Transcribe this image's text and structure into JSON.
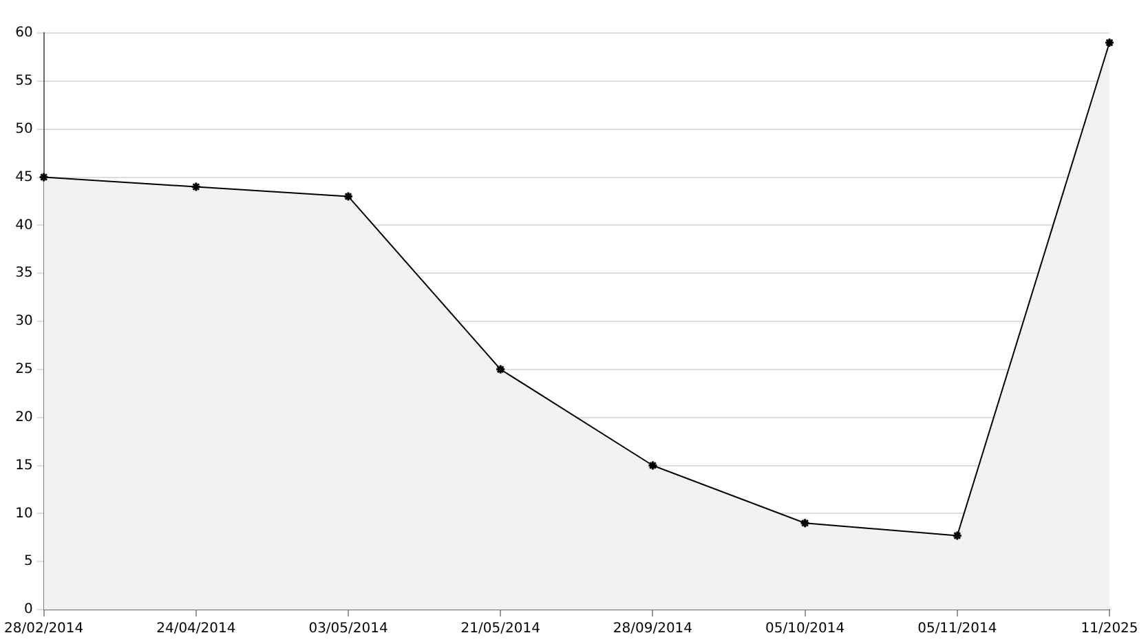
{
  "chart_data": {
    "type": "area",
    "categories": [
      "28/02/2014",
      "24/04/2014",
      "03/05/2014",
      "21/05/2014",
      "28/09/2014",
      "05/10/2014",
      "05/11/2014",
      "11/2025"
    ],
    "series": [
      {
        "color": "#000000",
        "values": [
          45,
          44,
          43,
          25,
          15,
          9,
          7.7,
          59
        ]
      }
    ],
    "ylim": [
      0,
      60
    ],
    "yticks": [
      0,
      5,
      10,
      15,
      20,
      25,
      30,
      35,
      40,
      45,
      50,
      55,
      60
    ],
    "grid": "y",
    "marker": "cross",
    "line_style": "solid"
  }
}
